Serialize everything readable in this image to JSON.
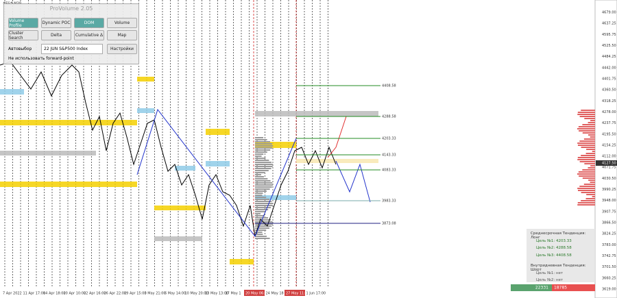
{
  "symbol": "#ES#,M30",
  "panel": {
    "title": "ProVolume 2.05",
    "buttons": [
      "Volume Profile",
      "Dynamic POC",
      "DOM",
      "Volume",
      "Cluster Search",
      "Delta",
      "Cumulative Δ",
      "Map"
    ],
    "auto_select": "Автовыбор",
    "instrument": "22 JUN S&P500 Index",
    "settings": "Настройки",
    "forward_point": "Не использовать forward-point"
  },
  "y_axis": [
    "4679.00",
    "4637.25",
    "4595.75",
    "4525.50",
    "4484.25",
    "4442.00",
    "4401.75",
    "4360.50",
    "4318.25",
    "4278.00",
    "4237.75",
    "4195.50",
    "4154.25",
    "4112.00",
    "4071.75",
    "4030.50",
    "3990.25",
    "3948.00",
    "3907.75",
    "3866.50",
    "3824.25",
    "3783.00",
    "3742.75",
    "3701.50",
    "3660.25",
    "3619.00"
  ],
  "current_price": "4127.50",
  "x_axis": [
    "7 Apr 2022",
    "11 Apr 17:00",
    "14 Apr 18:00",
    "20 Apr 10:00",
    "22 Apr 16:00",
    "26 Apr 22:00",
    "29 Apr 15:00",
    "3 May 21:00",
    "6 May 14:00",
    "10 May 20:00",
    "13 May 13:00",
    "17 May 1",
    "20 May 06:00",
    "24 May 18",
    "27 May 11:00",
    "1 Jun 17:00"
  ],
  "levels": [
    "4408.58",
    "4288.58",
    "4203.33",
    "4143.33",
    "4083.33",
    "3983.33",
    "3873.08"
  ],
  "trend_panel": {
    "lines": [
      "Среднесрочная Тенденция: Лонг",
      "Цель №1: 4203.33",
      "Цель №2: 4288.58",
      "Цель №3: 4408.58",
      "Внутридневная Тенденция: Шорт",
      "Цель №1: нет",
      "Цель №2: нет"
    ],
    "buy": "22331",
    "sell": "18785"
  }
}
